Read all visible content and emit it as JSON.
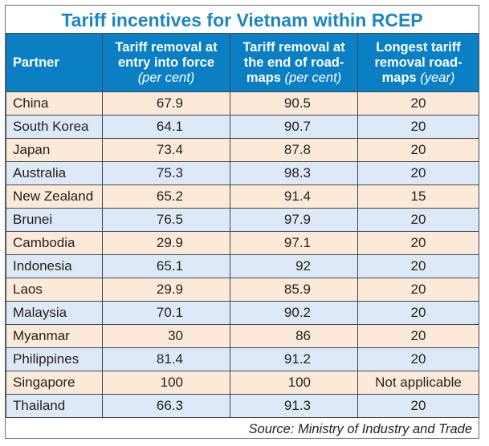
{
  "title": "Tariff incentives for Vietnam within RCEP",
  "headers": [
    {
      "main": "Partner",
      "unit": ""
    },
    {
      "main": "Tariff removal at entry into force",
      "unit": "(per cent)"
    },
    {
      "main": "Tariff removal at the end of road-maps",
      "unit": "(per cent)"
    },
    {
      "main": "Longest tariff removal road-maps",
      "unit": "(year)"
    }
  ],
  "rows": [
    {
      "partner": "China",
      "entry": "67.9",
      "end": "90.5",
      "years": "20"
    },
    {
      "partner": "South Korea",
      "entry": "64.1",
      "end": "90.7",
      "years": "20"
    },
    {
      "partner": "Japan",
      "entry": "73.4",
      "end": "87.8",
      "years": "20"
    },
    {
      "partner": "Australia",
      "entry": "75.3",
      "end": "98.3",
      "years": "20"
    },
    {
      "partner": "New Zealand",
      "entry": "65.2",
      "end": "91.4",
      "years": "15"
    },
    {
      "partner": "Brunei",
      "entry": "76.5",
      "end": "97.9",
      "years": "20"
    },
    {
      "partner": "Cambodia",
      "entry": "29.9",
      "end": "97.1",
      "years": "20"
    },
    {
      "partner": "Indonesia",
      "entry": "65.1",
      "end": "92",
      "years": "20"
    },
    {
      "partner": "Laos",
      "entry": "29.9",
      "end": "85.9",
      "years": "20"
    },
    {
      "partner": "Malaysia",
      "entry": "70.1",
      "end": "90.2",
      "years": "20"
    },
    {
      "partner": "Myanmar",
      "entry": "30",
      "end": "86",
      "years": "20"
    },
    {
      "partner": "Philippines",
      "entry": "81.4",
      "end": "91.2",
      "years": "20"
    },
    {
      "partner": "Singapore",
      "entry": "100",
      "end": "100",
      "years": "Not applicable"
    },
    {
      "partner": "Thailand",
      "entry": "66.3",
      "end": "91.3",
      "years": "20"
    }
  ],
  "source": "Source: Ministry of Industry and Trade",
  "colors": {
    "header": "#0b7fc3",
    "title": "#1a86c2",
    "row_odd": "#fde9d8",
    "row_even": "#dde9f6"
  }
}
